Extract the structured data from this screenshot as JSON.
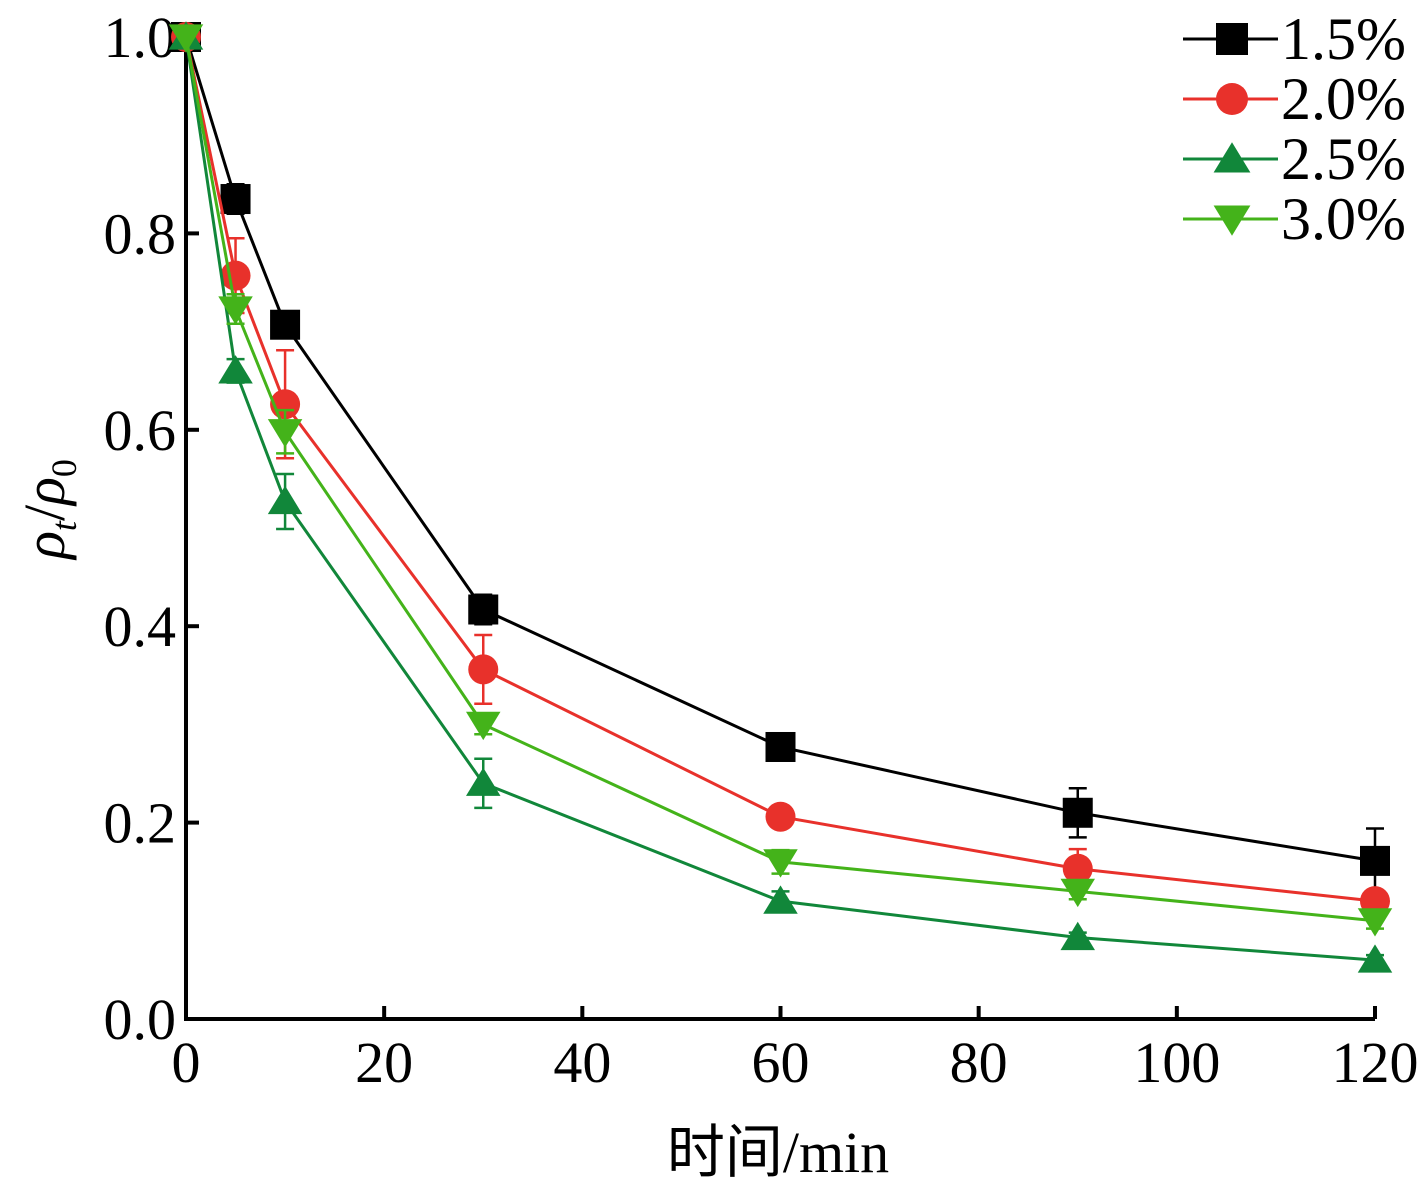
{
  "chart_data": {
    "type": "line",
    "x": [
      0,
      5,
      10,
      30,
      60,
      90,
      120
    ],
    "xlabel": "时间/min",
    "ylabel": {
      "base1": "ρ",
      "sub1": "t",
      "slash": "/",
      "base2": "ρ",
      "sub2": "0"
    },
    "xlim": [
      0,
      120
    ],
    "ylim": [
      0,
      1.0
    ],
    "xticks": [
      "0",
      "20",
      "40",
      "60",
      "80",
      "100",
      "120"
    ],
    "xtick_values": [
      0,
      20,
      40,
      60,
      80,
      100,
      120
    ],
    "yticks": [
      "0.0",
      "0.2",
      "0.4",
      "0.6",
      "0.8",
      "1.0"
    ],
    "ytick_values": [
      0,
      0.2,
      0.4,
      0.6,
      0.8,
      1.0
    ],
    "grid": false,
    "legend_position": "top-right",
    "series": [
      {
        "name": "1.5%",
        "color": "#000000",
        "marker": "square",
        "values": [
          1.0,
          0.835,
          0.707,
          0.417,
          0.277,
          0.21,
          0.161
        ],
        "errors": [
          0,
          0.015,
          0.012,
          0.015,
          0.01,
          0.025,
          0.033
        ]
      },
      {
        "name": "2.0%",
        "color": "#e8312b",
        "marker": "circle",
        "values": [
          1.0,
          0.757,
          0.626,
          0.356,
          0.206,
          0.153,
          0.12
        ],
        "errors": [
          0,
          0.038,
          0.055,
          0.035,
          0.01,
          0.02,
          0.008
        ]
      },
      {
        "name": "2.5%",
        "color": "#11873a",
        "marker": "triangle-up",
        "values": [
          1.0,
          0.66,
          0.527,
          0.24,
          0.12,
          0.083,
          0.06
        ],
        "errors": [
          0,
          0.012,
          0.028,
          0.025,
          0.01,
          0.005,
          0.005
        ]
      },
      {
        "name": "3.0%",
        "color": "#44b31a",
        "marker": "triangle-down",
        "values": [
          1.0,
          0.723,
          0.598,
          0.3,
          0.16,
          0.13,
          0.1
        ],
        "errors": [
          0,
          0.015,
          0.022,
          0.01,
          0.012,
          0.008,
          0.008
        ]
      }
    ]
  }
}
